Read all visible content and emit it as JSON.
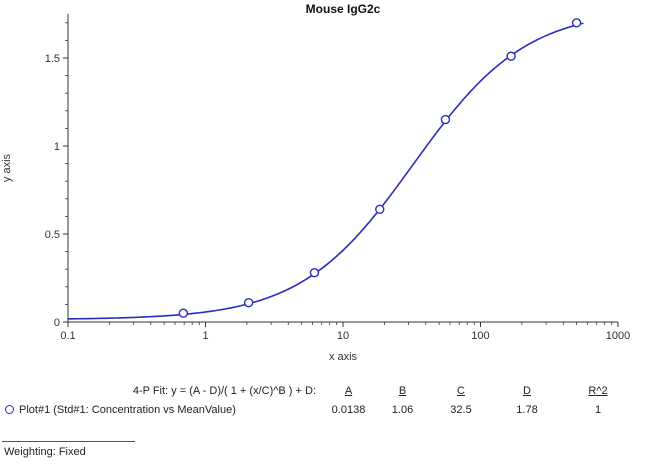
{
  "chart_data": {
    "type": "scatter",
    "title": "Mouse IgG2c",
    "xlabel": "x axis",
    "ylabel": "y axis",
    "x_scale": "log",
    "xlim": [
      0.1,
      1000
    ],
    "ylim": [
      0,
      1.75
    ],
    "xticks": [
      "0.1",
      "1",
      "10",
      "100",
      "1000"
    ],
    "yticks": [
      0,
      0.5,
      1,
      1.5
    ],
    "grid": false,
    "legend_position": "none",
    "series": [
      {
        "name": "Plot#1 (Std#1: Concentration vs MeanValue)",
        "marker": "open-circle",
        "color": "#2b2bbd",
        "points": [
          {
            "x": 0.69,
            "y": 0.05
          },
          {
            "x": 2.06,
            "y": 0.11
          },
          {
            "x": 6.2,
            "y": 0.28
          },
          {
            "x": 18.5,
            "y": 0.64
          },
          {
            "x": 55.6,
            "y": 1.15
          },
          {
            "x": 167,
            "y": 1.51
          },
          {
            "x": 500,
            "y": 1.7
          }
        ]
      }
    ],
    "fit": {
      "label": "4-P Fit",
      "equation": "y = (A - D)/( 1 + (x/C)^B ) + D",
      "A": 0.0138,
      "B": 1.06,
      "C": 32.5,
      "D": 1.78,
      "R2": 1,
      "curve_x_range": [
        0.1,
        560
      ]
    }
  },
  "fit_table": {
    "formula_label": "4-P Fit: y = (A - D)/( 1 + (x/C)^B ) + D:",
    "columns": [
      "A",
      "B",
      "C",
      "D",
      "R^2"
    ],
    "row_label": "Plot#1 (Std#1: Concentration vs MeanValue)",
    "values": [
      "0.0138",
      "1.06",
      "32.5",
      "1.78",
      "1"
    ]
  },
  "footer": {
    "weighting_label": "Weighting: Fixed"
  }
}
